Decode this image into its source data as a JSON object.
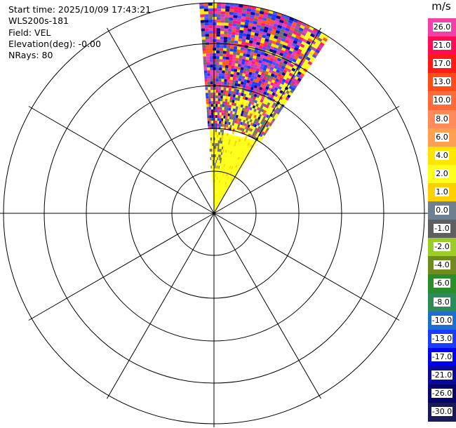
{
  "info": {
    "start_time": "Start time: 2025/10/09 17:43:21",
    "instrument": "WLS200s-181",
    "field": "Field: VEL",
    "elevation": "Elevation(deg): -0.00",
    "nrays": "NRays: 80"
  },
  "colorbar": {
    "unit": "m/s",
    "segments": [
      {
        "label": "26.0",
        "color": "#f33fa8"
      },
      {
        "label": "21.0",
        "color": "#ff0c52"
      },
      {
        "label": "17.0",
        "color": "#ff1a1a"
      },
      {
        "label": "13.0",
        "color": "#ff4a1a"
      },
      {
        "label": "10.0",
        "color": "#ff6a3a"
      },
      {
        "label": "8.0",
        "color": "#ff8a5a"
      },
      {
        "label": "6.0",
        "color": "#ff9f50"
      },
      {
        "label": "4.0",
        "color": "#ffe600"
      },
      {
        "label": "2.0",
        "color": "#ffff1e"
      },
      {
        "label": "1.0",
        "color": "#ffd000"
      },
      {
        "label": "0.0",
        "color": "#6e7f8f"
      },
      {
        "label": "-1.0",
        "color": "#5f5f5f"
      },
      {
        "label": "-2.0",
        "color": "#9ccc2a"
      },
      {
        "label": "-4.0",
        "color": "#6e8c1e"
      },
      {
        "label": "-6.0",
        "color": "#2a8c2a"
      },
      {
        "label": "-8.0",
        "color": "#2e8b57"
      },
      {
        "label": "-10.0",
        "color": "#1e6ed0"
      },
      {
        "label": "-13.0",
        "color": "#1a3cff"
      },
      {
        "label": "-17.0",
        "color": "#0000ee"
      },
      {
        "label": "-21.0",
        "color": "#0a0a9a"
      },
      {
        "label": "-26.0",
        "color": "#06066a"
      },
      {
        "label": "-30.0",
        "color": "#1a1a5a"
      }
    ]
  },
  "sector": {
    "azimuth_start_deg": 0,
    "azimuth_end_deg": 33,
    "palette": [
      "#ff1a7a",
      "#f33fa8",
      "#5050ff",
      "#1a3cff",
      "#6e6e6e",
      "#ffe600",
      "#ff5a1a",
      "#c040c0",
      "#0a0a9a"
    ]
  }
}
